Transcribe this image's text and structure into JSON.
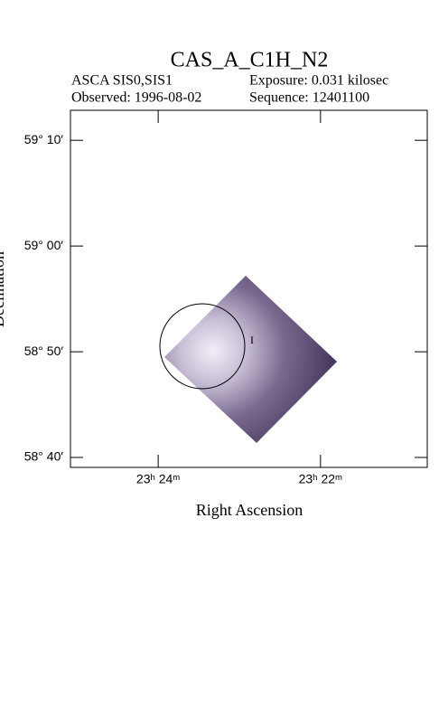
{
  "chart_data": {
    "type": "image",
    "title": "CAS_A_C1H_N2",
    "instrument": "ASCA SIS0,SIS1",
    "exposure": "Exposure: 0.031 kilosec",
    "observed": "Observed: 1996-08-02",
    "sequence": "Sequence: 12401100",
    "xlabel": "Right Ascension",
    "ylabel": "Declination",
    "xlim": [
      23.418,
      23.3448
    ],
    "ylim": [
      58.651,
      59.214
    ],
    "xticks": [
      {
        "value": 23.4,
        "label": "23ʰ 24ᵐ"
      },
      {
        "value": 23.3667,
        "label": "23ʰ 22ᵐ"
      }
    ],
    "yticks": [
      {
        "value": 58.6667,
        "label": "58° 40′"
      },
      {
        "value": 58.8333,
        "label": "58° 50′"
      },
      {
        "value": 59.0,
        "label": "59° 00′"
      },
      {
        "value": 59.1667,
        "label": "59° 10′"
      }
    ]
  }
}
